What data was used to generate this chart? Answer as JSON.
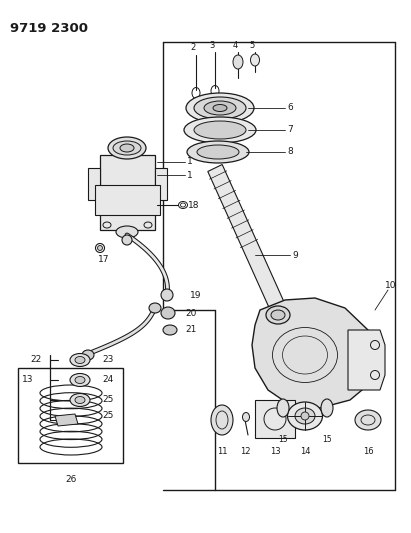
{
  "title": "9719 2300",
  "bg": "#ffffff",
  "lc": "#1a1a1a",
  "fig_w": 4.11,
  "fig_h": 5.33,
  "dpi": 100
}
